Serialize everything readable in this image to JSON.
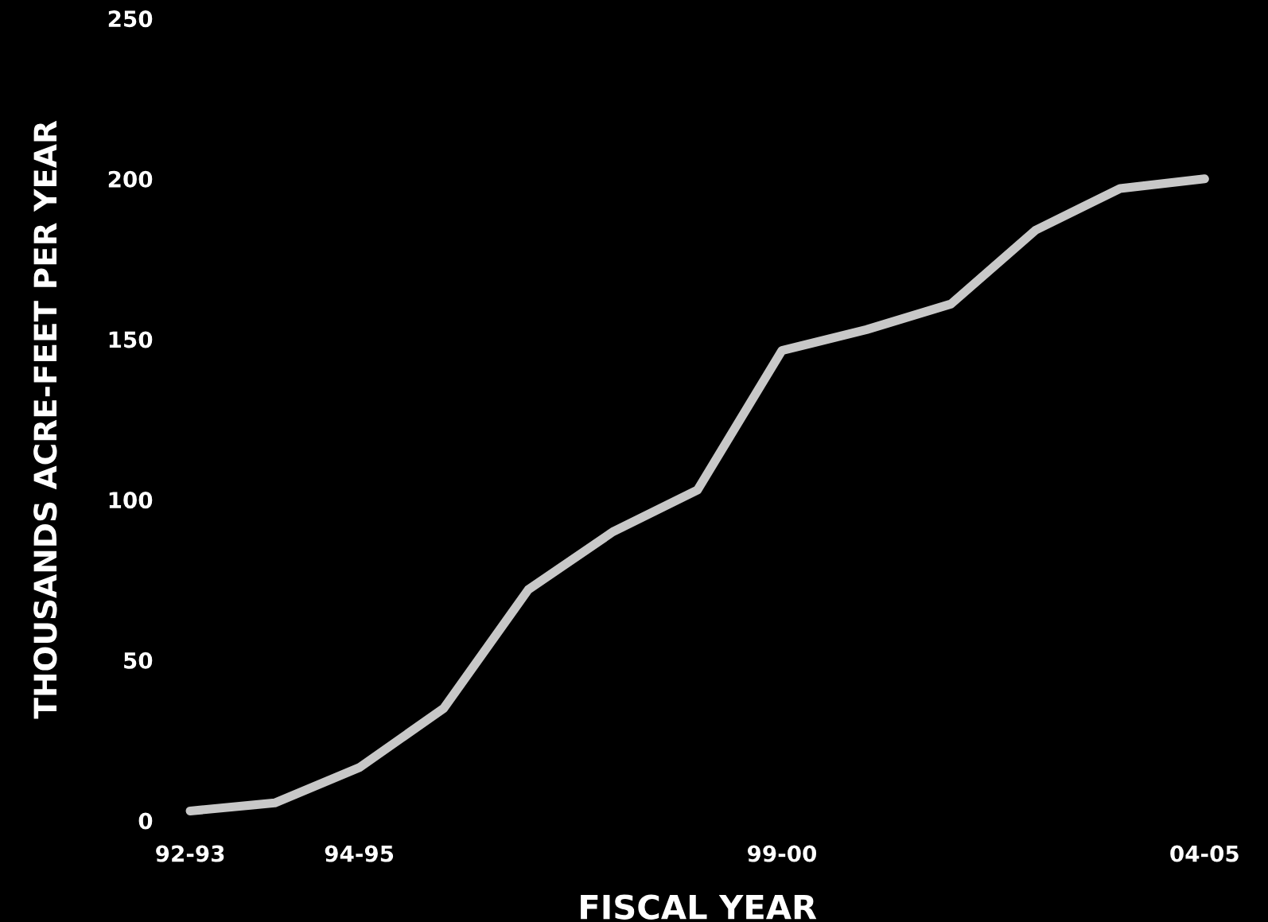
{
  "chart_data": {
    "type": "line",
    "xlabel": "FISCAL YEAR",
    "ylabel": "THOUSANDS ACRE-FEET PER YEAR",
    "categories": [
      "92-93",
      null,
      "94-95",
      null,
      null,
      null,
      null,
      "99-00",
      null,
      null,
      null,
      null,
      "04-05"
    ],
    "series": [
      {
        "color": "#c8c8c8",
        "values": [
          3,
          5.5,
          16.5,
          35,
          72,
          90,
          103,
          146.5,
          153,
          161,
          184,
          197,
          200
        ]
      }
    ],
    "ylim": [
      0,
      250
    ],
    "yticks": [
      0,
      50,
      100,
      150,
      200,
      250
    ],
    "grid": false,
    "legend": false,
    "marker": "none",
    "line_style": "solid"
  }
}
